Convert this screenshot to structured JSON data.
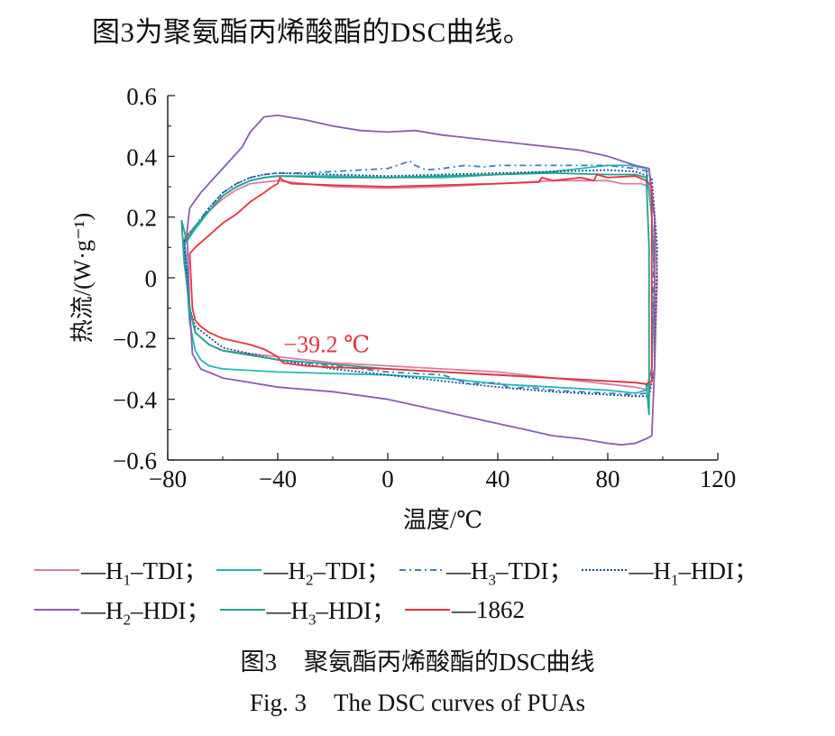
{
  "intro_text": "图3为聚氨酯丙烯酸酯的DSC曲线。",
  "chart_data": {
    "type": "line",
    "title": "",
    "xlabel": "温度/℃",
    "ylabel": "热流/(W·g⁻¹)",
    "xlim": [
      -80,
      120
    ],
    "ylim": [
      -0.6,
      0.6
    ],
    "x_ticks": [
      -80,
      -40,
      0,
      40,
      80,
      120
    ],
    "y_ticks": [
      -0.6,
      -0.4,
      -0.2,
      0,
      0.2,
      0.4,
      0.6
    ],
    "x_tick_labels": [
      "−80",
      "−40",
      "0",
      "40",
      "80",
      "120"
    ],
    "y_tick_labels": [
      "−0.6",
      "−0.4",
      "−0.2",
      "0",
      "0.2",
      "0.4",
      "0.6"
    ],
    "annotation": {
      "text": "−39.2 ℃",
      "x": -39.2,
      "y": -0.28,
      "color": "#e8323c"
    },
    "series": [
      {
        "name": "H1-TDI",
        "legend_main": "—H",
        "legend_sub": "1",
        "legend_tail": "–TDI；",
        "color": "#e07aa6",
        "dash": "",
        "x": [
          -74,
          -70,
          -65,
          -60,
          -55,
          -50,
          -45,
          -40,
          -20,
          0,
          20,
          40,
          60,
          80,
          85,
          92,
          95,
          97,
          98,
          97,
          95,
          90,
          80,
          60,
          40,
          20,
          0,
          -20,
          -40,
          -50,
          -60,
          -65,
          -70,
          -72,
          -74
        ],
        "y": [
          0.13,
          0.17,
          0.22,
          0.26,
          0.29,
          0.31,
          0.315,
          0.32,
          0.3,
          0.295,
          0.3,
          0.31,
          0.32,
          0.32,
          0.31,
          0.31,
          0.3,
          0.2,
          0.0,
          -0.3,
          -0.37,
          -0.36,
          -0.35,
          -0.33,
          -0.31,
          -0.3,
          -0.29,
          -0.28,
          -0.26,
          -0.25,
          -0.24,
          -0.22,
          -0.18,
          -0.1,
          0.13
        ]
      },
      {
        "name": "H2-TDI",
        "legend_main": "—H",
        "legend_sub": "2",
        "legend_tail": "–TDI；",
        "color": "#22b8b8",
        "dash": "",
        "x": [
          -74,
          -70,
          -65,
          -60,
          -55,
          -50,
          -45,
          -40,
          -20,
          0,
          20,
          40,
          60,
          80,
          88,
          94,
          96,
          97,
          96,
          94,
          90,
          80,
          60,
          40,
          20,
          0,
          -20,
          -40,
          -60,
          -65,
          -68,
          -70,
          -72,
          -74
        ],
        "y": [
          0.11,
          0.16,
          0.22,
          0.27,
          0.3,
          0.32,
          0.33,
          0.335,
          0.335,
          0.33,
          0.33,
          0.34,
          0.35,
          0.37,
          0.37,
          0.36,
          0.2,
          0.0,
          -0.3,
          -0.37,
          -0.38,
          -0.37,
          -0.36,
          -0.35,
          -0.33,
          -0.32,
          -0.315,
          -0.31,
          -0.3,
          -0.29,
          -0.27,
          -0.24,
          -0.15,
          0.11
        ]
      },
      {
        "name": "H3-TDI",
        "legend_main": "—H",
        "legend_sub": "3",
        "legend_tail": "–TDI；",
        "color": "#3a7fc1",
        "dash": "7 4 2 4",
        "x": [
          -74,
          -70,
          -65,
          -60,
          -55,
          -50,
          -45,
          -40,
          -30,
          -20,
          -10,
          0,
          5,
          8,
          10,
          14,
          20,
          28,
          35,
          40,
          60,
          80,
          90,
          95,
          97,
          96,
          94,
          90,
          80,
          60,
          50,
          45,
          40,
          30,
          25,
          20,
          10,
          0,
          -20,
          -40,
          -60,
          -65,
          -70,
          -72,
          -74
        ],
        "y": [
          0.12,
          0.17,
          0.23,
          0.28,
          0.31,
          0.33,
          0.34,
          0.345,
          0.345,
          0.35,
          0.355,
          0.36,
          0.375,
          0.385,
          0.37,
          0.355,
          0.36,
          0.37,
          0.365,
          0.37,
          0.37,
          0.37,
          0.36,
          0.35,
          0.2,
          -0.3,
          -0.38,
          -0.385,
          -0.38,
          -0.37,
          -0.36,
          -0.365,
          -0.345,
          -0.35,
          -0.335,
          -0.32,
          -0.315,
          -0.31,
          -0.29,
          -0.27,
          -0.24,
          -0.22,
          -0.18,
          -0.1,
          0.12
        ]
      },
      {
        "name": "H1-HDI",
        "legend_main": "—H",
        "legend_sub": "1",
        "legend_tail": "–HDI；",
        "color": "#1c4f9a",
        "dash": "2 2",
        "x": [
          -74,
          -70,
          -65,
          -60,
          -55,
          -50,
          -45,
          -40,
          -20,
          0,
          20,
          40,
          60,
          80,
          90,
          96,
          98,
          97,
          95,
          90,
          80,
          60,
          40,
          20,
          0,
          -20,
          -40,
          -60,
          -70,
          -72,
          -74
        ],
        "y": [
          0.12,
          0.17,
          0.23,
          0.28,
          0.31,
          0.33,
          0.34,
          0.345,
          0.34,
          0.335,
          0.34,
          0.345,
          0.35,
          0.355,
          0.35,
          0.33,
          0.1,
          -0.3,
          -0.39,
          -0.39,
          -0.385,
          -0.375,
          -0.36,
          -0.34,
          -0.32,
          -0.3,
          -0.27,
          -0.23,
          -0.16,
          -0.1,
          0.12
        ]
      },
      {
        "name": "H2-HDI",
        "legend_main": "—H",
        "legend_sub": "2",
        "legend_tail": "–HDI；",
        "color": "#8a5db0",
        "dash": "",
        "x": [
          -73,
          -72,
          -68,
          -63,
          -58,
          -53,
          -50,
          -45,
          -40,
          -30,
          -20,
          -10,
          0,
          10,
          20,
          30,
          40,
          50,
          60,
          70,
          80,
          90,
          95,
          97,
          97,
          96,
          94,
          90,
          85,
          80,
          70,
          60,
          55,
          50,
          40,
          30,
          20,
          10,
          0,
          -20,
          -40,
          -50,
          -60,
          -68,
          -71,
          -72,
          -73
        ],
        "y": [
          0.15,
          0.23,
          0.28,
          0.33,
          0.38,
          0.43,
          0.48,
          0.53,
          0.535,
          0.52,
          0.5,
          0.485,
          0.48,
          0.485,
          0.47,
          0.46,
          0.45,
          0.44,
          0.43,
          0.42,
          0.4,
          0.37,
          0.36,
          0.2,
          -0.3,
          -0.52,
          -0.53,
          -0.545,
          -0.55,
          -0.545,
          -0.53,
          -0.52,
          -0.51,
          -0.5,
          -0.48,
          -0.46,
          -0.44,
          -0.42,
          -0.4,
          -0.375,
          -0.36,
          -0.345,
          -0.33,
          -0.3,
          -0.25,
          -0.1,
          0.15
        ]
      },
      {
        "name": "H3-HDI",
        "legend_main": "—H",
        "legend_sub": "3",
        "legend_tail": "–HDI；",
        "color": "#1fa58e",
        "dash": "",
        "x": [
          -75,
          -73,
          -70,
          -65,
          -60,
          -55,
          -50,
          -45,
          -40,
          -20,
          0,
          20,
          40,
          60,
          80,
          90,
          94,
          95,
          95,
          94,
          90,
          80,
          60,
          40,
          20,
          0,
          -20,
          -40,
          -60,
          -65,
          -70,
          -72,
          -74,
          -75
        ],
        "y": [
          0.19,
          0.12,
          0.17,
          0.22,
          0.27,
          0.3,
          0.32,
          0.33,
          0.335,
          0.33,
          0.33,
          0.335,
          0.34,
          0.345,
          0.34,
          0.34,
          0.33,
          0.1,
          -0.45,
          -0.35,
          -0.345,
          -0.34,
          -0.33,
          -0.32,
          -0.31,
          -0.3,
          -0.285,
          -0.27,
          -0.24,
          -0.22,
          -0.18,
          -0.1,
          0.05,
          0.19
        ]
      },
      {
        "name": "1862",
        "legend_main": "—1862",
        "legend_sub": "",
        "legend_tail": "",
        "color": "#e8323c",
        "dash": "",
        "x": [
          -72,
          -70,
          -65,
          -60,
          -55,
          -50,
          -45,
          -42,
          -40,
          -39.2,
          -38,
          -35,
          -20,
          0,
          20,
          40,
          55,
          56,
          60,
          70,
          75,
          76,
          80,
          90,
          94,
          96,
          96,
          94,
          90,
          80,
          60,
          40,
          20,
          0,
          -20,
          -30,
          -38,
          -39.2,
          -40,
          -45,
          -50,
          -60,
          -65,
          -68,
          -70,
          -71,
          -72
        ],
        "y": [
          0.08,
          0.1,
          0.14,
          0.18,
          0.21,
          0.25,
          0.28,
          0.3,
          0.31,
          0.33,
          0.32,
          0.31,
          0.305,
          0.3,
          0.305,
          0.31,
          0.315,
          0.33,
          0.32,
          0.33,
          0.32,
          0.34,
          0.33,
          0.335,
          0.32,
          0.3,
          -0.34,
          -0.35,
          -0.345,
          -0.34,
          -0.33,
          -0.32,
          -0.31,
          -0.3,
          -0.295,
          -0.29,
          -0.28,
          -0.27,
          -0.26,
          -0.235,
          -0.22,
          -0.2,
          -0.18,
          -0.16,
          -0.14,
          -0.1,
          0.08
        ]
      }
    ]
  },
  "caption_cn": {
    "label": "图3",
    "text": "聚氨酯丙烯酸酯的DSC曲线"
  },
  "caption_en": {
    "label": "Fig. 3",
    "text": "The DSC curves of PUAs"
  }
}
